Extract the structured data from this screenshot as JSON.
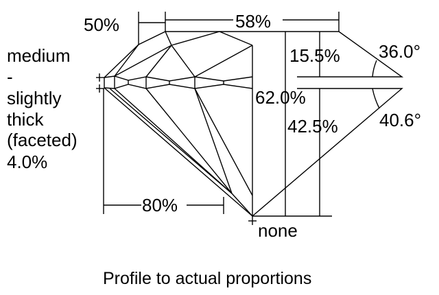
{
  "diagram": {
    "caption": "Profile to actual proportions",
    "girdle_label": [
      "medium",
      "-",
      "slightly",
      "thick",
      "(faceted)",
      "4.0%"
    ],
    "crown_height_label": "50%",
    "table_label": "58%",
    "crown_depth_label": "15.5%",
    "crown_angle_label": "36.0°",
    "total_depth_label": "62.0%",
    "pavilion_depth_label": "42.5%",
    "pavilion_angle_label": "40.6°",
    "lower_half_label": "80%",
    "culet_label": "none",
    "line_color": "#000000",
    "background": "#ffffff"
  }
}
